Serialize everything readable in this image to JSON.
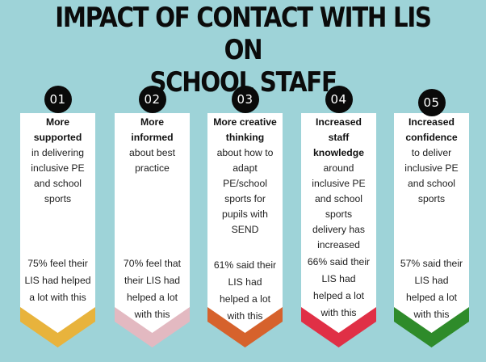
{
  "title": {
    "line1": "IMPACT OF CONTACT WITH LIS ON",
    "line2": "SCHOOL STAFF"
  },
  "cards": [
    {
      "number": "01",
      "heading_lines": [
        "More",
        "supported"
      ],
      "body_lines": [
        "in delivering",
        "inclusive PE",
        "and school",
        "sports"
      ],
      "stat_lines": [
        "75% feel their",
        "LIS had helped",
        "a lot with this"
      ],
      "accent": "#e8b33c"
    },
    {
      "number": "02",
      "heading_lines": [
        "More",
        "informed"
      ],
      "body_lines": [
        "about best",
        "practice"
      ],
      "stat_lines": [
        "70% feel that",
        "their LIS had",
        "helped a lot",
        "with this"
      ],
      "accent": "#e3b9c1"
    },
    {
      "number": "03",
      "heading_lines": [
        "More creative",
        "thinking"
      ],
      "body_lines": [
        "about how to",
        "adapt",
        "PE/school",
        "sports for",
        "pupils with",
        "SEND"
      ],
      "stat_lines": [
        "61% said their",
        "LIS had",
        "helped a lot",
        "with this"
      ],
      "accent": "#d6622c"
    },
    {
      "number": "04",
      "heading_lines": [
        "Increased",
        "staff",
        "knowledge"
      ],
      "body_lines": [
        "around",
        "inclusive PE",
        "and school",
        "sports",
        "delivery has",
        "increased"
      ],
      "stat_lines": [
        "66% said their",
        "LIS had",
        "helped a lot",
        "with this"
      ],
      "accent": "#e03046"
    },
    {
      "number": "05",
      "heading_lines": [
        "Increased",
        "confidence"
      ],
      "body_lines": [
        "to deliver",
        "inclusive PE",
        "and school",
        "sports"
      ],
      "stat_lines": [
        "57% said  their",
        "LIS had",
        "helped a lot",
        "with this"
      ],
      "accent": "#2e8b2a"
    }
  ]
}
